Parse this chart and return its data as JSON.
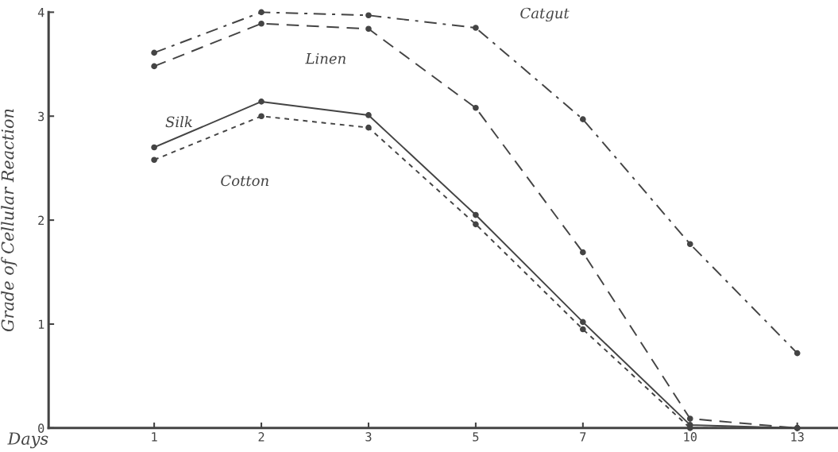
{
  "chart_data": {
    "type": "line",
    "xlabel": "Days",
    "ylabel": "Grade of Cellular Reaction",
    "categories": [
      "1",
      "2",
      "3",
      "5",
      "7",
      "10",
      "13"
    ],
    "series": [
      {
        "name": "Catgut",
        "color": "#444444",
        "line_style": "dashdot",
        "values": [
          3.61,
          4.0,
          3.97,
          3.85,
          2.97,
          1.77,
          0.72
        ]
      },
      {
        "name": "Linen",
        "color": "#444444",
        "line_style": "dashed",
        "values": [
          3.48,
          3.89,
          3.84,
          3.08,
          1.69,
          0.09,
          0
        ]
      },
      {
        "name": "Silk",
        "color": "#444444",
        "line_style": "solid",
        "values": [
          2.7,
          3.14,
          3.01,
          2.05,
          1.02,
          0.03,
          0
        ]
      },
      {
        "name": "Cotton",
        "color": "#444444",
        "line_style": "dotted",
        "values": [
          2.58,
          3.0,
          2.89,
          1.96,
          0.95,
          0,
          0
        ]
      }
    ],
    "ylim": [
      0,
      4
    ],
    "yticks": [
      0,
      1,
      2,
      3,
      4
    ],
    "marker": "circle",
    "grid": false,
    "legend": false
  }
}
